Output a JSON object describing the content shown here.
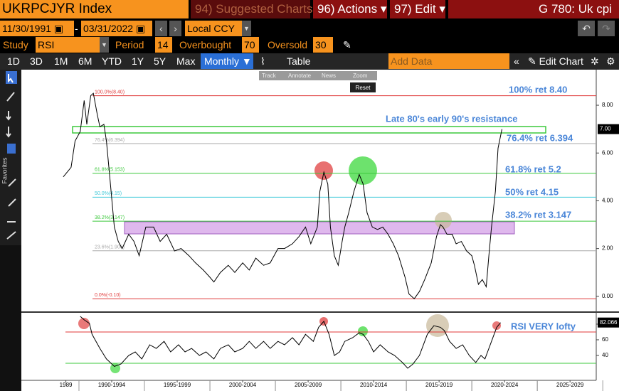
{
  "header": {
    "ticker": "UKRPCJYR Index",
    "suggested": "94) Suggested Charts",
    "actions": "96) Actions",
    "edit": "97) Edit",
    "function": "G 780: Uk cpi"
  },
  "controls": {
    "start_date": "11/30/1991",
    "end_date": "03/31/2022",
    "currency": "Local CCY",
    "study_label": "Study",
    "study": "RSI",
    "period_label": "Period",
    "period": 14,
    "overbought_label": "Overbought",
    "overbought": 70,
    "oversold_label": "Oversold",
    "oversold": 30
  },
  "toolbar": {
    "ranges": [
      "1D",
      "3D",
      "1M",
      "6M",
      "YTD",
      "1Y",
      "5Y",
      "Max"
    ],
    "frequency": "Monthly",
    "table": "Table",
    "add_data": "Add Data",
    "edit_chart": "Edit Chart",
    "mini_tools": [
      "Track",
      "Annotate",
      "News",
      "Zoom"
    ],
    "reset": "Reset",
    "sidebar": "Favorites"
  },
  "chart_data": [
    {
      "type": "line",
      "color": "#000000",
      "x": [
        1988.8,
        1989.4,
        1989.7,
        1990.1,
        1990.4,
        1990.6,
        1990.9,
        1991.1,
        1991.4,
        1991.6,
        1991.9,
        1992.1,
        1992.4,
        1992.7,
        1993.0,
        1993.3,
        1993.8,
        1994.2,
        1994.6,
        1995.1,
        1995.7,
        1996.2,
        1996.7,
        1997.3,
        1997.8,
        1998.4,
        1998.9,
        1999.5,
        2000.0,
        2000.3,
        2000.8,
        2001.4,
        2001.9,
        2002.5,
        2003.0,
        2003.5,
        2004.1,
        2004.6,
        2005.2,
        2005.7,
        2006.3,
        2006.8,
        2007.3,
        2007.7,
        2008.2,
        2008.4,
        2008.7,
        2009.0,
        2009.2,
        2009.5,
        2009.8,
        2010.1,
        2010.3,
        2010.6,
        2011.0,
        2011.4,
        2011.7,
        2012.0,
        2012.4,
        2012.8,
        2013.2,
        2013.6,
        2014.0,
        2014.4,
        2014.9,
        2015.2,
        2015.6,
        2016.0,
        2016.4,
        2016.9,
        2017.3,
        2017.6,
        2017.8,
        2018.1,
        2018.5,
        2018.8,
        2019.2,
        2019.6,
        2020.0,
        2020.2,
        2020.5,
        2020.8,
        2021.1,
        2021.3,
        2021.5,
        2021.8,
        2022.0,
        2022.3
      ],
      "values": [
        5.0,
        5.4,
        6.5,
        6.9,
        8.2,
        7.2,
        8.4,
        8.5,
        7.6,
        7.1,
        7.2,
        6.5,
        4.7,
        2.9,
        2.3,
        2.0,
        2.6,
        2.3,
        1.7,
        2.9,
        2.9,
        2.3,
        2.6,
        1.9,
        2.0,
        1.7,
        1.4,
        1.1,
        0.8,
        0.6,
        1.0,
        1.3,
        1.0,
        1.4,
        1.1,
        1.6,
        1.3,
        1.4,
        2.0,
        2.0,
        2.2,
        2.5,
        2.9,
        2.2,
        2.9,
        4.4,
        5.2,
        4.7,
        2.9,
        1.7,
        1.3,
        2.3,
        2.9,
        3.5,
        4.4,
        5.1,
        4.7,
        3.5,
        2.9,
        2.8,
        2.9,
        2.6,
        2.2,
        1.7,
        0.8,
        0.1,
        -0.1,
        0.2,
        0.7,
        1.4,
        2.5,
        3.0,
        2.9,
        2.6,
        2.6,
        2.2,
        2.3,
        1.9,
        1.7,
        1.3,
        0.5,
        0.7,
        0.4,
        1.7,
        2.9,
        4.4,
        6.2,
        7.0
      ],
      "xlim": [
        1985.6,
        2029.5
      ],
      "ylim": [
        -0.6,
        9.4
      ],
      "yticks": [
        {
          "value": 0,
          "label": "0.00"
        },
        {
          "value": 2,
          "label": "2.00"
        },
        {
          "value": 4,
          "label": "4.00"
        },
        {
          "value": 6,
          "label": "6.00"
        },
        {
          "value": 8,
          "label": "8.00"
        }
      ],
      "last_value": {
        "value": 7.0,
        "label": "7.00"
      },
      "levels": [
        {
          "value": 8.4,
          "label": "100.0%(8.40)",
          "color": "#e03a3a"
        },
        {
          "value": 6.394,
          "label": "76.4%(6.394)",
          "color": "#a8a8a8"
        },
        {
          "value": 5.153,
          "label": "61.8%(5.153)",
          "color": "#3cc83c"
        },
        {
          "value": 4.15,
          "label": "50.0%(4.15)",
          "color": "#3cc8d8"
        },
        {
          "value": 3.147,
          "label": "38.2%(3.147)",
          "color": "#3cc83c"
        },
        {
          "value": 1.906,
          "label": "23.6%(1.906)",
          "color": "#a8a8a8"
        },
        {
          "value": -0.1,
          "label": "0.0%(-0.10)",
          "color": "#e03a3a"
        }
      ],
      "annotations": [
        "100% ret 8.40",
        "Late 80's early 90's resistance",
        "76.4% ret 6.394",
        "61.8% ret 5.2",
        "50% ret 4.15",
        "38.2% ret 3.147"
      ]
    },
    {
      "type": "line",
      "color": "#000000",
      "x": [
        1990.1,
        1990.4,
        1990.8,
        1991.0,
        1991.6,
        1992.1,
        1992.7,
        1993.2,
        1993.8,
        1994.3,
        1994.8,
        1995.4,
        1995.9,
        1996.5,
        1997.0,
        1997.6,
        1998.1,
        1998.6,
        1999.2,
        1999.7,
        2000.3,
        2000.8,
        2001.4,
        2001.9,
        2002.5,
        2003.0,
        2003.5,
        2004.1,
        2004.6,
        2005.2,
        2005.7,
        2006.3,
        2006.8,
        2007.3,
        2007.9,
        2008.3,
        2008.7,
        2009.1,
        2009.5,
        2009.9,
        2010.3,
        2010.9,
        2011.4,
        2011.7,
        2012.1,
        2012.5,
        2013.0,
        2013.6,
        2014.1,
        2014.7,
        2015.1,
        2015.5,
        2016.0,
        2016.6,
        2017.1,
        2017.6,
        2017.9,
        2018.3,
        2018.8,
        2019.3,
        2019.8,
        2020.3,
        2020.7,
        2021.0,
        2021.5,
        2021.9,
        2022.2
      ],
      "values": [
        90,
        85.5,
        81,
        67,
        49,
        35.5,
        26,
        29,
        40,
        44.5,
        35.5,
        53.6,
        49,
        58,
        44.5,
        53.6,
        44.5,
        49,
        40,
        44.5,
        35.5,
        49,
        53.6,
        44.5,
        49,
        58,
        49,
        58,
        49,
        58,
        53.6,
        62.7,
        53.6,
        67,
        58,
        76,
        83.6,
        67,
        40,
        44.5,
        58,
        62.7,
        69,
        67,
        58,
        44.5,
        53.6,
        44.5,
        40,
        31,
        23.6,
        29,
        40,
        67,
        78,
        76,
        71.8,
        58,
        49,
        53.6,
        40,
        31,
        40,
        35.5,
        58,
        76,
        82
      ],
      "xlim": [
        1985.6,
        2029.5
      ],
      "ylim": [
        10.9,
        93.6
      ],
      "yticks": [
        40,
        60,
        80
      ],
      "last_value": {
        "value": 82.066,
        "label": "82.066"
      },
      "xticks": [
        1989,
        {
          "value": 1992.5,
          "label": "1990-1994"
        },
        {
          "value": 1997.5,
          "label": "1995-1999"
        },
        {
          "value": 2002.5,
          "label": "2000-2004"
        },
        {
          "value": 2007.5,
          "label": "2005-2009"
        },
        {
          "value": 2012.5,
          "label": "2010-2014"
        },
        {
          "value": 2017.5,
          "label": "2015-2019"
        },
        {
          "value": 2022.5,
          "label": "2020-2024"
        },
        {
          "value": 2027.5,
          "label": "2025-2029"
        }
      ],
      "annotations": [
        "RSI VERY lofty"
      ]
    }
  ]
}
